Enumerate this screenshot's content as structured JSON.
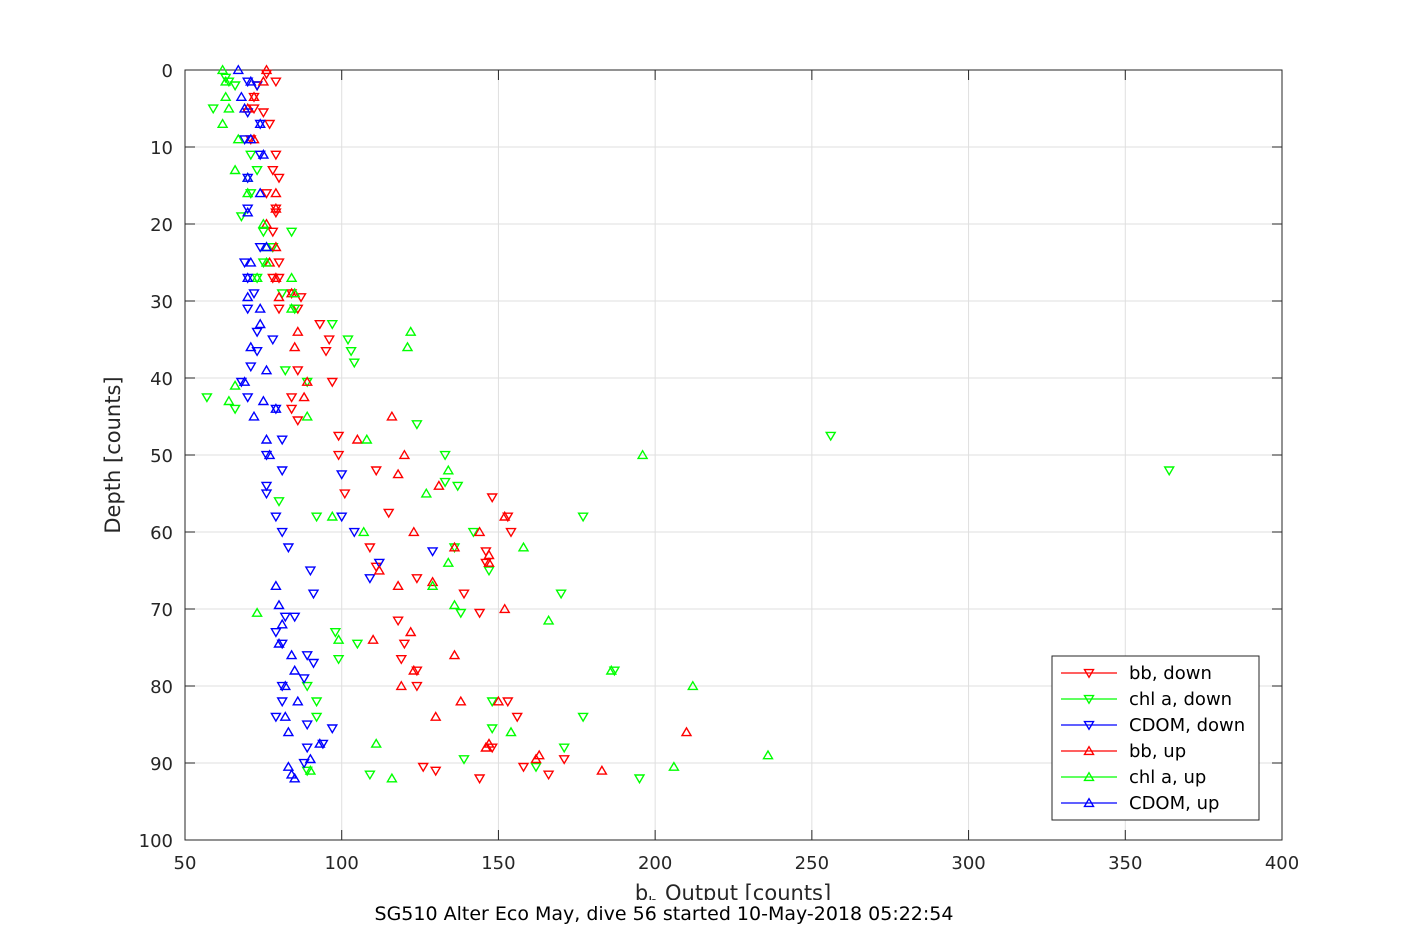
{
  "caption": "SG510 Alter Eco May, dive 56 started 10-May-2018 05:22:54",
  "chart_data": {
    "type": "scatter",
    "title": "",
    "xlabel_base": "b",
    "xlabel_sub": "b",
    "xlabel_rest": " Output [counts]",
    "ylabel": "Depth [counts]",
    "xlim": [
      50,
      400
    ],
    "ylim": [
      0,
      100
    ],
    "y_reversed": true,
    "xticks": [
      50,
      100,
      150,
      200,
      250,
      300,
      350,
      400
    ],
    "yticks": [
      0,
      10,
      20,
      30,
      40,
      50,
      60,
      70,
      80,
      90,
      100
    ],
    "xtick_labels": [
      "50",
      "100",
      "150",
      "200",
      "250",
      "300",
      "350",
      "400"
    ],
    "ytick_labels": [
      "0",
      "10",
      "20",
      "30",
      "40",
      "50",
      "60",
      "70",
      "80",
      "90",
      "100"
    ],
    "grid": true,
    "legend_position": "bottom-right",
    "series": [
      {
        "name": "bb, down",
        "color": "#ff0000",
        "marker": "triangle-down",
        "points": [
          [
            76,
            0.5
          ],
          [
            79,
            1.5
          ],
          [
            73,
            2
          ],
          [
            72,
            3.5
          ],
          [
            72,
            5
          ],
          [
            75,
            5.5
          ],
          [
            77,
            7
          ],
          [
            71,
            9
          ],
          [
            79,
            11
          ],
          [
            78,
            13
          ],
          [
            80,
            14
          ],
          [
            76,
            16
          ],
          [
            79,
            18
          ],
          [
            79,
            18.5
          ],
          [
            78,
            21
          ],
          [
            78,
            23
          ],
          [
            80,
            25
          ],
          [
            80,
            27
          ],
          [
            78,
            27
          ],
          [
            84,
            29
          ],
          [
            80,
            31
          ],
          [
            87,
            29.5
          ],
          [
            86,
            31
          ],
          [
            93,
            33
          ],
          [
            96,
            35
          ],
          [
            95,
            36.5
          ],
          [
            97,
            40.5
          ],
          [
            86,
            39
          ],
          [
            84,
            42.5
          ],
          [
            84,
            44
          ],
          [
            86,
            45.5
          ],
          [
            99,
            47.5
          ],
          [
            99,
            50
          ],
          [
            111,
            52
          ],
          [
            101,
            55
          ],
          [
            115,
            57.5
          ],
          [
            109,
            62
          ],
          [
            111,
            64.5
          ],
          [
            124,
            66
          ],
          [
            139,
            68
          ],
          [
            144,
            70.5
          ],
          [
            118,
            71.5
          ],
          [
            120,
            74.5
          ],
          [
            119,
            76.5
          ],
          [
            124,
            78
          ],
          [
            124,
            80
          ],
          [
            148,
            55.5
          ],
          [
            153,
            58
          ],
          [
            154,
            60
          ],
          [
            146,
            62.5
          ],
          [
            146,
            64
          ],
          [
            156,
            84
          ],
          [
            153,
            82
          ],
          [
            148,
            88
          ],
          [
            158,
            90.5
          ],
          [
            130,
            91
          ],
          [
            126,
            90.5
          ],
          [
            144,
            92
          ],
          [
            166,
            91.5
          ],
          [
            171,
            89.5
          ]
        ]
      },
      {
        "name": "chl a, down",
        "color": "#00ff00",
        "marker": "triangle-down",
        "points": [
          [
            63,
            1
          ],
          [
            64,
            1.5
          ],
          [
            66,
            2
          ],
          [
            59,
            5
          ],
          [
            71,
            11
          ],
          [
            73,
            13
          ],
          [
            71,
            16
          ],
          [
            68,
            19
          ],
          [
            75,
            21
          ],
          [
            84,
            21
          ],
          [
            78,
            23
          ],
          [
            75,
            25
          ],
          [
            73,
            27
          ],
          [
            81,
            29
          ],
          [
            85,
            31
          ],
          [
            97,
            33
          ],
          [
            102,
            35
          ],
          [
            103,
            36.5
          ],
          [
            104,
            38
          ],
          [
            82,
            39
          ],
          [
            89,
            40.5
          ],
          [
            57,
            42.5
          ],
          [
            66,
            44
          ],
          [
            80,
            56
          ],
          [
            124,
            46
          ],
          [
            133,
            50
          ],
          [
            133,
            53.5
          ],
          [
            137,
            54
          ],
          [
            92,
            58
          ],
          [
            142,
            60
          ],
          [
            136,
            62
          ],
          [
            147,
            65
          ],
          [
            170,
            68
          ],
          [
            138,
            70.5
          ],
          [
            105,
            74.5
          ],
          [
            98,
            73
          ],
          [
            99,
            76.5
          ],
          [
            89,
            80
          ],
          [
            92,
            82
          ],
          [
            92,
            84
          ],
          [
            148,
            82
          ],
          [
            148,
            85.5
          ],
          [
            177,
            58
          ],
          [
            187,
            78
          ],
          [
            177,
            84
          ],
          [
            171,
            88
          ],
          [
            162,
            90.5
          ],
          [
            139,
            89.5
          ],
          [
            109,
            91.5
          ],
          [
            89,
            91
          ],
          [
            195,
            92
          ],
          [
            256,
            47.5
          ],
          [
            364,
            52
          ]
        ]
      },
      {
        "name": "CDOM, down",
        "color": "#0000ff",
        "marker": "triangle-down",
        "points": [
          [
            70,
            1.5
          ],
          [
            73,
            2
          ],
          [
            70,
            5.5
          ],
          [
            74,
            7
          ],
          [
            69,
            9
          ],
          [
            74,
            11
          ],
          [
            70,
            14
          ],
          [
            70,
            18
          ],
          [
            74,
            23
          ],
          [
            69,
            25
          ],
          [
            70,
            27
          ],
          [
            72,
            29
          ],
          [
            70,
            31
          ],
          [
            73,
            34
          ],
          [
            78,
            35
          ],
          [
            73,
            36.5
          ],
          [
            71,
            38.5
          ],
          [
            68,
            40.5
          ],
          [
            70,
            42.5
          ],
          [
            79,
            44
          ],
          [
            81,
            48
          ],
          [
            76,
            50
          ],
          [
            81,
            52
          ],
          [
            76,
            54
          ],
          [
            76,
            55
          ],
          [
            79,
            58
          ],
          [
            81,
            60
          ],
          [
            83,
            62
          ],
          [
            90,
            65
          ],
          [
            91,
            68
          ],
          [
            82,
            71
          ],
          [
            79,
            73
          ],
          [
            81,
            74.5
          ],
          [
            89,
            76
          ],
          [
            91,
            77
          ],
          [
            81,
            80
          ],
          [
            88,
            79
          ],
          [
            81,
            82
          ],
          [
            79,
            84
          ],
          [
            89,
            85
          ],
          [
            94,
            87.5
          ],
          [
            88,
            90
          ],
          [
            97,
            85.5
          ],
          [
            89,
            88
          ],
          [
            104,
            60
          ],
          [
            109,
            66
          ],
          [
            100,
            58
          ],
          [
            100,
            52.5
          ],
          [
            85,
            71
          ],
          [
            112,
            64
          ],
          [
            129,
            62.5
          ]
        ]
      },
      {
        "name": "bb, up",
        "color": "#ff0000",
        "marker": "triangle-up",
        "points": [
          [
            76,
            0
          ],
          [
            70,
            5
          ],
          [
            75,
            1.5
          ],
          [
            72,
            3.5
          ],
          [
            72,
            9
          ],
          [
            79,
            16
          ],
          [
            79,
            18
          ],
          [
            76,
            20
          ],
          [
            79,
            23
          ],
          [
            77,
            25
          ],
          [
            79,
            27
          ],
          [
            80,
            29.5
          ],
          [
            84,
            29
          ],
          [
            86,
            34
          ],
          [
            85,
            36
          ],
          [
            89,
            40.5
          ],
          [
            88,
            42.5
          ],
          [
            116,
            45
          ],
          [
            105,
            48
          ],
          [
            120,
            50
          ],
          [
            118,
            52.5
          ],
          [
            131,
            54
          ],
          [
            123,
            60
          ],
          [
            136,
            62
          ],
          [
            147,
            64
          ],
          [
            144,
            60
          ],
          [
            152,
            70
          ],
          [
            129,
            66.5
          ],
          [
            118,
            67
          ],
          [
            112,
            65
          ],
          [
            110,
            74
          ],
          [
            122,
            73
          ],
          [
            136,
            76
          ],
          [
            123,
            78
          ],
          [
            119,
            80
          ],
          [
            138,
            82
          ],
          [
            130,
            84
          ],
          [
            146,
            88
          ],
          [
            162,
            89.5
          ],
          [
            183,
            91
          ],
          [
            210,
            86
          ],
          [
            150,
            82
          ],
          [
            152,
            58
          ],
          [
            147,
            63
          ],
          [
            163,
            89
          ],
          [
            147,
            87.5
          ]
        ]
      },
      {
        "name": "chl a, up",
        "color": "#00ff00",
        "marker": "triangle-up",
        "points": [
          [
            62,
            0
          ],
          [
            63,
            1.5
          ],
          [
            63,
            3.5
          ],
          [
            64,
            5
          ],
          [
            62,
            7
          ],
          [
            67,
            9
          ],
          [
            66,
            13
          ],
          [
            70,
            14
          ],
          [
            70,
            16
          ],
          [
            75,
            20
          ],
          [
            76,
            23
          ],
          [
            76,
            25
          ],
          [
            73,
            27
          ],
          [
            84,
            27
          ],
          [
            84,
            31
          ],
          [
            85,
            29
          ],
          [
            122,
            34
          ],
          [
            121,
            36
          ],
          [
            66,
            41
          ],
          [
            64,
            43
          ],
          [
            89,
            45
          ],
          [
            108,
            48
          ],
          [
            196,
            50
          ],
          [
            134,
            52
          ],
          [
            127,
            55
          ],
          [
            97,
            58
          ],
          [
            107,
            60
          ],
          [
            158,
            62
          ],
          [
            134,
            64
          ],
          [
            129,
            67
          ],
          [
            136,
            69.5
          ],
          [
            166,
            71.5
          ],
          [
            73,
            70.5
          ],
          [
            99,
            74
          ],
          [
            186,
            78
          ],
          [
            212,
            80
          ],
          [
            154,
            86
          ],
          [
            111,
            87.5
          ],
          [
            236,
            89
          ],
          [
            206,
            90.5
          ],
          [
            116,
            92
          ],
          [
            90,
            91
          ]
        ]
      },
      {
        "name": "CDOM, up",
        "color": "#0000ff",
        "marker": "triangle-up",
        "points": [
          [
            67,
            0
          ],
          [
            71,
            1.5
          ],
          [
            68,
            3.5
          ],
          [
            69,
            5
          ],
          [
            74,
            7
          ],
          [
            71,
            9
          ],
          [
            75,
            11
          ],
          [
            70,
            14
          ],
          [
            74,
            16
          ],
          [
            70,
            18.5
          ],
          [
            76,
            23
          ],
          [
            71,
            25
          ],
          [
            70,
            27
          ],
          [
            70,
            29.5
          ],
          [
            74,
            31
          ],
          [
            74,
            33
          ],
          [
            71,
            36
          ],
          [
            76,
            39
          ],
          [
            69,
            40.5
          ],
          [
            75,
            43
          ],
          [
            72,
            45
          ],
          [
            79,
            44
          ],
          [
            76,
            48
          ],
          [
            77,
            50
          ],
          [
            79,
            67
          ],
          [
            80,
            69.5
          ],
          [
            81,
            72
          ],
          [
            80,
            74.5
          ],
          [
            84,
            76
          ],
          [
            85,
            78
          ],
          [
            82,
            80
          ],
          [
            86,
            82
          ],
          [
            82,
            84
          ],
          [
            83,
            86
          ],
          [
            93,
            87.5
          ],
          [
            90,
            89.5
          ],
          [
            83,
            90.5
          ],
          [
            84,
            91.5
          ],
          [
            85,
            92
          ]
        ]
      }
    ]
  }
}
